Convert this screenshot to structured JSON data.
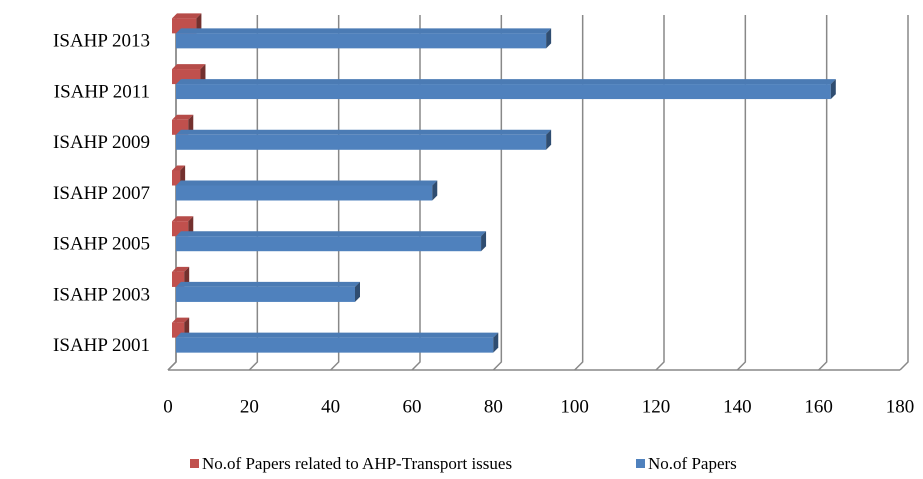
{
  "chart_data": {
    "type": "bar",
    "orientation": "horizontal",
    "categories": [
      "ISAHP 2001",
      "ISAHP 2003",
      "ISAHP 2005",
      "ISAHP 2007",
      "ISAHP 2009",
      "ISAHP 2011",
      "ISAHP 2013"
    ],
    "series": [
      {
        "name": "No.of Papers related to AHP-Transport issues",
        "color": "#c0504d",
        "values": [
          3,
          3,
          4,
          2,
          4,
          7,
          6
        ]
      },
      {
        "name": "No.of Papers",
        "color": "#4f81bd",
        "values": [
          79,
          45,
          76,
          64,
          92,
          162,
          92
        ]
      }
    ],
    "xlim": [
      0,
      180
    ],
    "xticks": [
      0,
      20,
      40,
      60,
      80,
      100,
      120,
      140,
      160,
      180
    ],
    "grid": true,
    "legend": "bottom"
  }
}
